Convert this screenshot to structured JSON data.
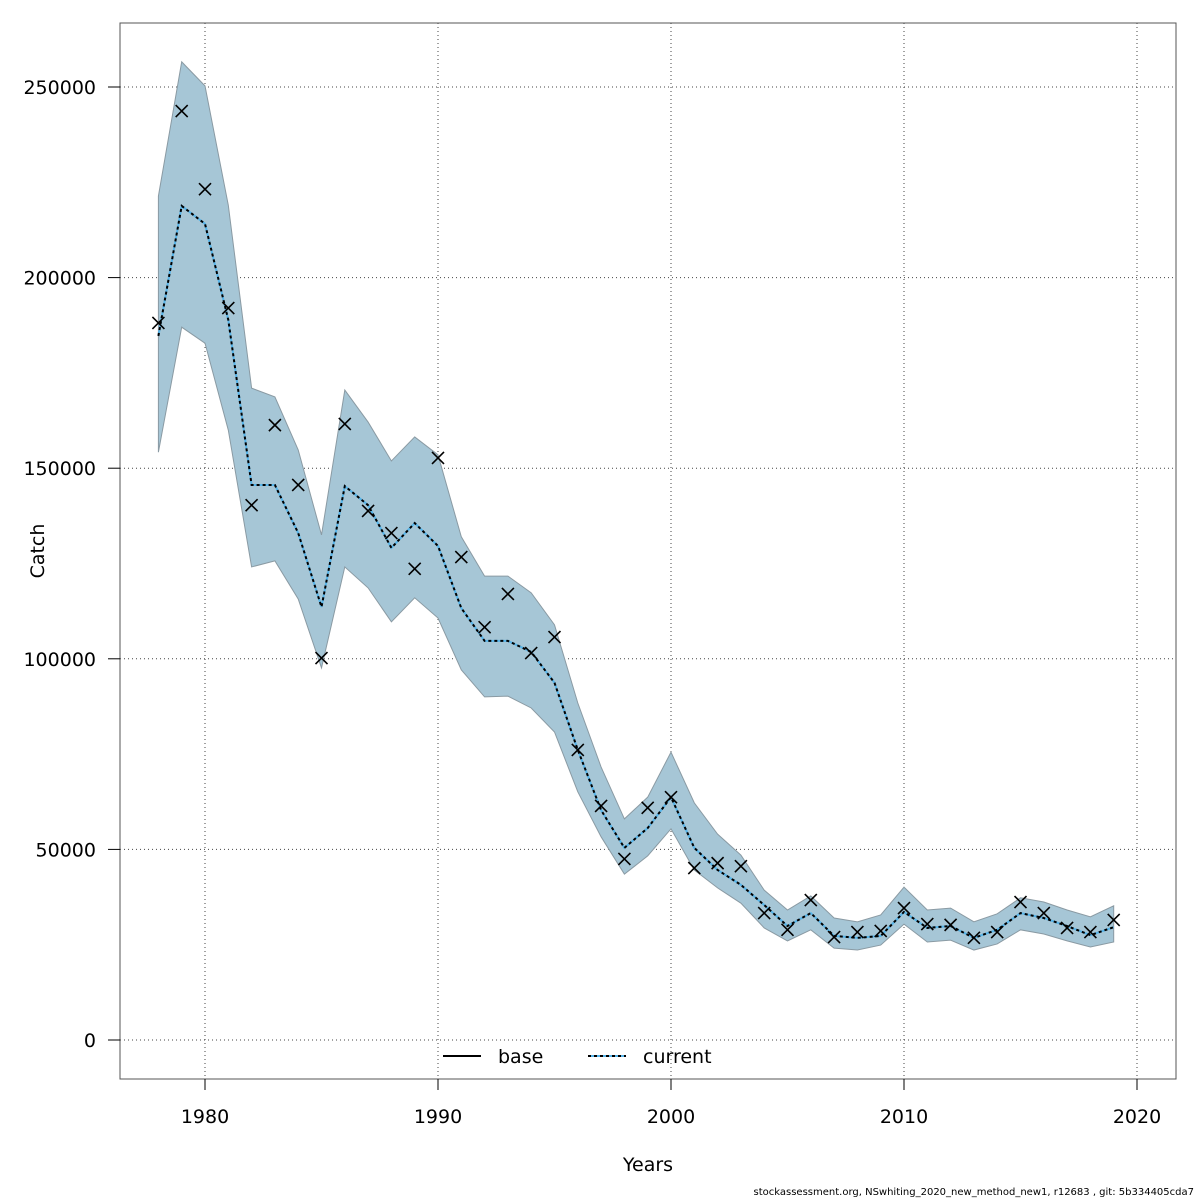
{
  "chart_data": {
    "type": "line",
    "title": "",
    "xlabel": "Years",
    "ylabel": "Catch",
    "xlim": [
      1976.4,
      2021.7
    ],
    "ylim": [
      -10000,
      266000
    ],
    "xticks": [
      1980,
      1990,
      2000,
      2010,
      2020
    ],
    "yticks": [
      0,
      50000,
      100000,
      150000,
      200000,
      250000
    ],
    "grid": true,
    "legend": {
      "position": "bottom",
      "entries": [
        "base",
        "current"
      ]
    },
    "colors": {
      "band": "#a6c6d6",
      "band_border": "#8a9aa3",
      "current": "#56b4e9",
      "base": "#000000"
    },
    "x": [
      1978,
      1979,
      1980,
      1981,
      1982,
      1983,
      1984,
      1985,
      1986,
      1987,
      1988,
      1989,
      1990,
      1991,
      1992,
      1993,
      1994,
      1995,
      1996,
      1997,
      1998,
      1999,
      2000,
      2001,
      2002,
      2003,
      2004,
      2005,
      2006,
      2007,
      2008,
      2009,
      2010,
      2011,
      2012,
      2013,
      2014,
      2015,
      2016,
      2017,
      2018,
      2019
    ],
    "series": [
      {
        "name": "current",
        "values": [
          184700,
          218800,
          214100,
          188900,
          145600,
          145600,
          133000,
          113600,
          145300,
          140300,
          129100,
          135600,
          129600,
          113300,
          104700,
          104700,
          101800,
          93700,
          76100,
          60300,
          50400,
          55600,
          63700,
          50400,
          44600,
          40700,
          35400,
          29900,
          33300,
          27300,
          26800,
          27300,
          33600,
          29400,
          29900,
          26800,
          28900,
          33300,
          32000,
          29900,
          27500,
          29600
        ],
        "upper": [
          221400,
          256600,
          250300,
          219000,
          171000,
          168700,
          154800,
          132500,
          170500,
          162100,
          151900,
          158200,
          153500,
          132000,
          121700,
          121700,
          117300,
          108900,
          88400,
          71600,
          58000,
          63700,
          75500,
          62200,
          54000,
          48500,
          39300,
          34100,
          37800,
          32000,
          31000,
          32800,
          40100,
          34100,
          34600,
          31000,
          33100,
          37300,
          36200,
          34100,
          32300,
          35200
        ],
        "lower": [
          154200,
          187000,
          182800,
          160000,
          124100,
          125700,
          115700,
          97600,
          124100,
          118600,
          109700,
          116000,
          110700,
          97100,
          90000,
          90200,
          87100,
          80800,
          65100,
          53300,
          43500,
          48300,
          55400,
          44600,
          39900,
          35900,
          29400,
          26000,
          28900,
          24100,
          23600,
          24900,
          30400,
          25700,
          26200,
          23600,
          25200,
          28900,
          27800,
          26000,
          24400,
          25700
        ]
      },
      {
        "name": "observed",
        "values": [
          188100,
          243700,
          223200,
          192000,
          140300,
          161300,
          145600,
          100200,
          161600,
          138800,
          133000,
          123600,
          152700,
          126700,
          108300,
          117000,
          101500,
          105700,
          76100,
          61400,
          47500,
          60900,
          63700,
          45100,
          46400,
          45600,
          33300,
          28900,
          36700,
          27000,
          28300,
          28600,
          34600,
          30400,
          30200,
          26800,
          28300,
          36200,
          33300,
          29400,
          28300,
          31500
        ]
      }
    ]
  },
  "footer": "stockassessment.org, NSwhiting_2020_new_method_new1, r12683 , git: 5b334405cda7"
}
